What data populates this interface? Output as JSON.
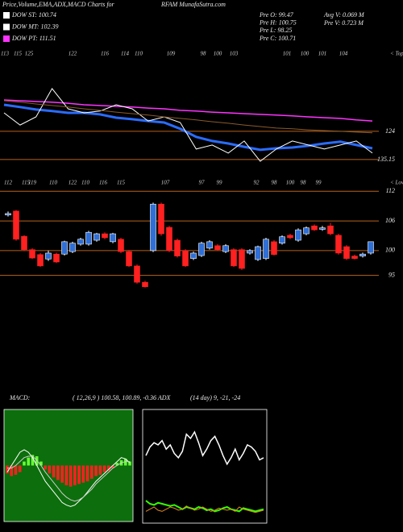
{
  "header": {
    "title": "Price,Volume,EMA,ADX,MACD Charts for",
    "site": "RFAM MunafaSutra.com",
    "legend": [
      {
        "name": "DOW ST: 100.74",
        "color": "#ffffff"
      },
      {
        "name": "DOW MT: 102.39",
        "color": "#ffffff"
      },
      {
        "name": "DOW PT: 111.51",
        "color": "#ff33ff"
      }
    ],
    "stats": [
      "Pre O: 99.47",
      "Pre H: 100.75",
      "Pre L: 98.25",
      "Pre C: 100.71"
    ],
    "volume": [
      "Avg V: 0.069 M",
      "Pre V: 0.723 M"
    ]
  },
  "chart_data": [
    {
      "type": "line",
      "annotation": "< Tops",
      "labels": [
        "113",
        "115",
        "125",
        "122",
        "116",
        "114",
        "110",
        "109",
        "98",
        "100",
        "103",
        "101",
        "100",
        "101",
        "104"
      ],
      "categories": [
        null,
        null,
        null,
        null,
        null,
        null,
        null,
        null,
        null,
        null,
        null,
        null,
        null,
        null,
        null,
        null,
        null,
        null,
        null,
        null,
        null,
        null,
        null,
        null
      ],
      "ylim": [
        137.4,
        92.8
      ],
      "yticks": [
        124,
        135.15
      ],
      "grid_color": "#b8621b",
      "series": [
        {
          "color": "#ff33ff",
          "values": [
            111.6,
            111.9,
            112.2,
            112.5,
            112.9,
            113.5,
            113.8,
            114.1,
            114.4,
            114.8,
            115.1,
            115.7,
            116.0,
            116.4,
            116.7,
            117.0,
            117.3,
            117.6,
            117.9,
            118.3,
            118.6,
            118.9,
            119.5,
            119.9
          ]
        },
        {
          "color": "#2a6cff",
          "values": [
            113.5,
            114.4,
            115.4,
            116.0,
            116.7,
            116.7,
            117.3,
            118.6,
            119.2,
            119.9,
            120.5,
            123.0,
            126.2,
            127.8,
            128.8,
            130.1,
            131.3,
            130.7,
            130.4,
            129.7,
            128.8,
            128.1,
            129.4,
            130.7
          ]
        },
        {
          "color": "#ffffff",
          "values": [
            116.7,
            121.5,
            118.3,
            107.1,
            115.1,
            116.7,
            116.0,
            113.5,
            115.1,
            119.9,
            118.3,
            120.5,
            131.0,
            129.4,
            132.6,
            127.8,
            135.8,
            131.0,
            127.8,
            129.4,
            131.0,
            129.4,
            127.8,
            132.6
          ]
        },
        {
          "color": "#8b5a2b",
          "values": [
            111.9,
            112.5,
            113.2,
            113.8,
            114.4,
            115.1,
            115.7,
            116.4,
            117.0,
            117.6,
            118.3,
            118.9,
            119.5,
            120.2,
            120.8,
            121.5,
            122.1,
            122.7,
            123.0,
            123.4,
            123.7,
            124.0,
            124.3,
            124.6
          ]
        }
      ]
    },
    {
      "type": "candlestick",
      "annotation": "< Lows",
      "labels": [
        "112",
        "115",
        "119",
        "110",
        "122",
        "110",
        "116",
        "115",
        "107",
        "97",
        "99",
        "92",
        "98",
        "100",
        "98",
        "99"
      ],
      "categories": [
        null,
        null,
        null,
        null,
        null,
        null,
        null,
        null,
        null,
        null,
        null,
        null,
        null,
        null,
        null,
        null,
        null,
        null,
        null,
        null,
        null,
        null,
        null,
        null,
        null,
        null,
        null,
        null,
        null,
        null,
        null,
        null,
        null,
        null,
        null,
        null,
        null,
        null,
        null,
        null,
        null,
        null,
        null,
        null,
        null,
        null
      ],
      "open": [
        107.2,
        108.0,
        102.9,
        100.2,
        99.2,
        98.3,
        99.3,
        99.3,
        99.8,
        101.3,
        101.3,
        102.1,
        103.4,
        101.8,
        102.3,
        99.8,
        96.9,
        93.6,
        100.0,
        109.4,
        104.7,
        102.1,
        100.0,
        98.4,
        99.0,
        100.5,
        101.0,
        99.8,
        100.2,
        100.2,
        99.5,
        98.2,
        98.4,
        101.8,
        101.5,
        103.1,
        102.1,
        103.4,
        105.0,
        104.3,
        105.0,
        103.1,
        100.8,
        98.9,
        98.9,
        99.5
      ],
      "high": [
        107.9,
        108.2,
        103.1,
        100.5,
        99.5,
        100.0,
        99.6,
        102.0,
        101.8,
        102.6,
        104.0,
        103.6,
        103.7,
        103.6,
        102.6,
        100.1,
        97.2,
        93.9,
        109.7,
        109.7,
        105.0,
        102.4,
        100.3,
        99.8,
        101.8,
        102.1,
        101.3,
        101.3,
        100.5,
        100.5,
        100.3,
        101.0,
        102.6,
        102.1,
        103.1,
        103.4,
        104.5,
        104.9,
        105.3,
        105.0,
        105.6,
        103.4,
        101.1,
        99.2,
        99.6,
        101.8
      ],
      "low": [
        106.9,
        102.0,
        99.9,
        98.3,
        96.7,
        97.9,
        97.5,
        99.0,
        99.5,
        101.0,
        101.0,
        101.8,
        102.3,
        101.5,
        99.5,
        96.7,
        93.3,
        92.5,
        99.7,
        103.0,
        99.7,
        98.6,
        96.7,
        98.1,
        98.7,
        100.2,
        100.0,
        99.5,
        96.7,
        96.1,
        99.2,
        97.9,
        98.1,
        99.0,
        101.2,
        102.3,
        101.8,
        103.1,
        104.0,
        104.0,
        103.1,
        99.2,
        98.1,
        98.2,
        98.6,
        99.2
      ],
      "close": [
        107.5,
        102.3,
        100.2,
        98.5,
        96.9,
        99.5,
        97.7,
        101.8,
        101.5,
        102.3,
        103.7,
        103.4,
        102.6,
        103.4,
        99.8,
        96.9,
        93.6,
        92.7,
        109.4,
        103.4,
        100.0,
        98.9,
        96.9,
        99.5,
        101.5,
        101.8,
        100.2,
        101.0,
        96.9,
        96.4,
        100.0,
        100.8,
        102.3,
        99.2,
        102.8,
        102.6,
        104.2,
        104.6,
        104.2,
        104.6,
        103.4,
        99.5,
        98.4,
        98.4,
        99.3,
        101.8
      ],
      "up_color": "#2f6fd6",
      "down_color": "#ff2020",
      "ylim": [
        92,
        114
      ],
      "yticks": [
        95,
        100,
        106,
        112
      ],
      "grid_color": "#b8621b"
    },
    {
      "type": "macd",
      "title": "MACD:",
      "subtitle": "( 12,26,9 ) 100.58, 100.89, -0.36 ADX",
      "background": "#0c6e0c",
      "categories": [
        null,
        null,
        null,
        null,
        null,
        null,
        null,
        null,
        null,
        null,
        null,
        null,
        null,
        null,
        null,
        null,
        null,
        null,
        null,
        null,
        null,
        null,
        null,
        null,
        null,
        null,
        null,
        null,
        null,
        null
      ],
      "ylim": [
        -4,
        4
      ],
      "positive_color": "#66ff33",
      "negative_color": "#ff2020",
      "histogram": [
        -0.6,
        -0.8,
        -0.7,
        -0.5,
        0.3,
        0.6,
        0.8,
        0.7,
        0.3,
        -0.3,
        -0.6,
        -0.9,
        -1.1,
        -1.3,
        -1.5,
        -1.6,
        -1.5,
        -1.4,
        -1.3,
        -1.2,
        -1.0,
        -0.8,
        -0.7,
        -0.5,
        -0.4,
        -0.2,
        0.2,
        0.4,
        0.5,
        0.3
      ],
      "series": [
        {
          "color": "#ffffff",
          "values": [
            -0.5,
            0.0,
            0.5,
            1.0,
            1.2,
            1.0,
            0.6,
            0.0,
            -0.6,
            -1.2,
            -1.6,
            -2.0,
            -2.4,
            -2.8,
            -3.0,
            -3.1,
            -3.0,
            -2.7,
            -2.4,
            -2.0,
            -1.6,
            -1.2,
            -0.9,
            -0.6,
            -0.3,
            0.0,
            0.3,
            0.6,
            0.5,
            0.2
          ]
        },
        {
          "color": "#cccccc",
          "values": [
            -0.2,
            -0.2,
            0.0,
            0.3,
            0.6,
            0.7,
            0.7,
            0.4,
            0.0,
            -0.5,
            -0.9,
            -1.3,
            -1.7,
            -2.1,
            -2.4,
            -2.6,
            -2.7,
            -2.6,
            -2.4,
            -2.1,
            -1.8,
            -1.4,
            -1.1,
            -0.8,
            -0.5,
            -0.2,
            0.0,
            0.2,
            0.3,
            0.3
          ]
        }
      ]
    },
    {
      "type": "adx",
      "title": "(14 day) 9, -21, -24",
      "background": "#000000",
      "categories": [
        null,
        null,
        null,
        null,
        null,
        null,
        null,
        null,
        null,
        null,
        null,
        null,
        null,
        null,
        null,
        null,
        null,
        null,
        null,
        null,
        null,
        null,
        null,
        null,
        null,
        null,
        null,
        null,
        null,
        null
      ],
      "ylim": [
        0,
        100
      ],
      "series": [
        {
          "color": "#ffffff",
          "values": [
            60,
            68,
            72,
            70,
            74,
            66,
            70,
            62,
            58,
            64,
            80,
            76,
            82,
            72,
            60,
            66,
            74,
            78,
            70,
            60,
            52,
            58,
            66,
            56,
            62,
            70,
            68,
            64,
            56,
            58
          ]
        },
        {
          "color": "#33ff00",
          "values": [
            18,
            15,
            14,
            16,
            15,
            14,
            13,
            14,
            12,
            10,
            12,
            11,
            10,
            12,
            11,
            9,
            10,
            8,
            9,
            11,
            12,
            10,
            9,
            8,
            11,
            10,
            9,
            8,
            9,
            10
          ]
        },
        {
          "color": "#e08a20",
          "values": [
            8,
            10,
            12,
            9,
            8,
            10,
            12,
            11,
            9,
            10,
            13,
            11,
            9,
            10,
            12,
            10,
            8,
            9,
            11,
            10,
            9,
            10,
            8,
            12,
            10,
            9,
            8,
            7,
            8,
            9
          ]
        }
      ]
    }
  ]
}
